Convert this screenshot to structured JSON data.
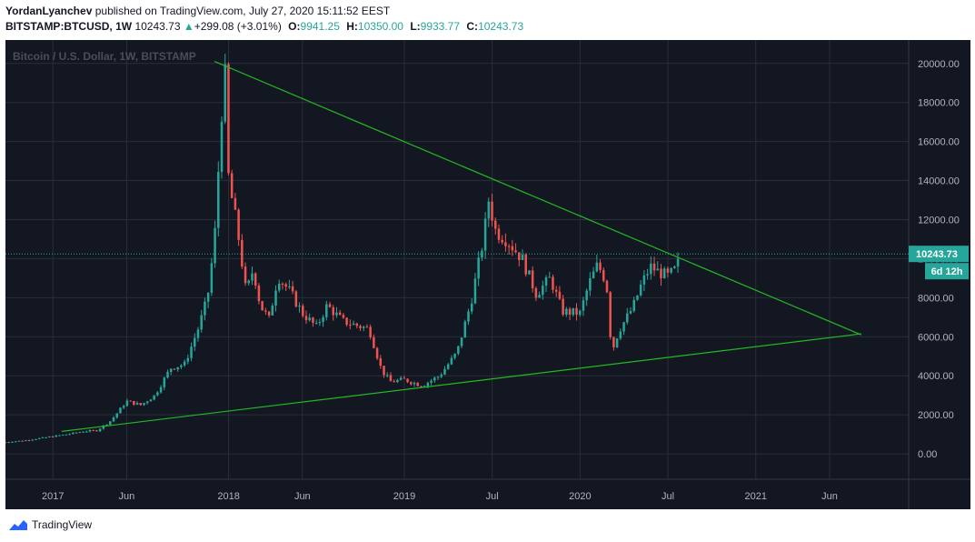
{
  "header": {
    "author": "YordanLyanchev",
    "published_text": "published on TradingView.com, July 27, 2020 15:11:52 EEST",
    "symbol": "BITSTAMP:BTCUSD, 1W",
    "last": "10243.73",
    "change_arrow": "▲",
    "change": "+299.08 (+3.01%)",
    "o_label": "O:",
    "o": "9941.25",
    "h_label": "H:",
    "h": "10350.00",
    "l_label": "L:",
    "l": "9933.77",
    "c_label": "C:",
    "c": "10243.73"
  },
  "footer": {
    "brand": "TradingView"
  },
  "colors": {
    "background": "#131722",
    "up": "#26a69a",
    "down": "#ef5350",
    "trendline": "#22b922",
    "axis_text": "#b2b5be",
    "grid": "#2a2e39",
    "price_tag": "#26a69a"
  },
  "chart_data": {
    "type": "candlestick",
    "title": "Bitcoin / U.S. Dollar, 1W, BITSTAMP",
    "y_ticks": [
      "20000.00",
      "18000.00",
      "16000.00",
      "14000.00",
      "12000.00",
      "10000.00",
      "8000.00",
      "6000.00",
      "4000.00",
      "2000.00",
      "0.00"
    ],
    "ylim": [
      -1300,
      21200
    ],
    "x_ticks": [
      {
        "label": "2017",
        "t": 2017.0
      },
      {
        "label": "Jun",
        "t": 2017.42
      },
      {
        "label": "2018",
        "t": 2018.0
      },
      {
        "label": "Jun",
        "t": 2018.42
      },
      {
        "label": "2019",
        "t": 2019.0
      },
      {
        "label": "Jul",
        "t": 2019.5
      },
      {
        "label": "2020",
        "t": 2020.0
      },
      {
        "label": "Jul",
        "t": 2020.5
      },
      {
        "label": "2021",
        "t": 2021.0
      },
      {
        "label": "Jun",
        "t": 2021.42
      }
    ],
    "xlim": [
      2016.73,
      2021.87
    ],
    "current_price": "10243.73",
    "countdown": "6d 12h",
    "price_points": [
      [
        2016.73,
        600
      ],
      [
        2016.85,
        700
      ],
      [
        2017.0,
        900
      ],
      [
        2017.08,
        1000
      ],
      [
        2017.17,
        1150
      ],
      [
        2017.25,
        1200
      ],
      [
        2017.33,
        1700
      ],
      [
        2017.42,
        2700
      ],
      [
        2017.5,
        2500
      ],
      [
        2017.58,
        3000
      ],
      [
        2017.67,
        4400
      ],
      [
        2017.75,
        4600
      ],
      [
        2017.83,
        6500
      ],
      [
        2017.88,
        8000
      ],
      [
        2017.92,
        11000
      ],
      [
        2017.96,
        17500
      ],
      [
        2017.98,
        19300
      ],
      [
        2018.0,
        14000
      ],
      [
        2018.05,
        11500
      ],
      [
        2018.1,
        8200
      ],
      [
        2018.14,
        9500
      ],
      [
        2018.18,
        7600
      ],
      [
        2018.23,
        6900
      ],
      [
        2018.28,
        9100
      ],
      [
        2018.35,
        8300
      ],
      [
        2018.42,
        7200
      ],
      [
        2018.5,
        6500
      ],
      [
        2018.56,
        7600
      ],
      [
        2018.65,
        6800
      ],
      [
        2018.72,
        6600
      ],
      [
        2018.8,
        6400
      ],
      [
        2018.87,
        4300
      ],
      [
        2018.92,
        3700
      ],
      [
        2019.0,
        3800
      ],
      [
        2019.1,
        3500
      ],
      [
        2019.2,
        4000
      ],
      [
        2019.3,
        5200
      ],
      [
        2019.38,
        7800
      ],
      [
        2019.45,
        11000
      ],
      [
        2019.48,
        13000
      ],
      [
        2019.52,
        11400
      ],
      [
        2019.58,
        11000
      ],
      [
        2019.67,
        10000
      ],
      [
        2019.75,
        8200
      ],
      [
        2019.83,
        9000
      ],
      [
        2019.9,
        7300
      ],
      [
        2020.0,
        7200
      ],
      [
        2020.05,
        8700
      ],
      [
        2020.1,
        9700
      ],
      [
        2020.15,
        8800
      ],
      [
        2020.18,
        5200
      ],
      [
        2020.22,
        6300
      ],
      [
        2020.3,
        7500
      ],
      [
        2020.35,
        8700
      ],
      [
        2020.4,
        9600
      ],
      [
        2020.45,
        9300
      ],
      [
        2020.5,
        9100
      ],
      [
        2020.55,
        9500
      ],
      [
        2020.57,
        10243
      ]
    ],
    "trendlines": [
      {
        "name": "upper",
        "from": [
          2017.92,
          20100
        ],
        "to": [
          2021.6,
          6100
        ]
      },
      {
        "name": "lower",
        "from": [
          2017.05,
          1150
        ],
        "to": [
          2021.6,
          6150
        ]
      }
    ]
  }
}
